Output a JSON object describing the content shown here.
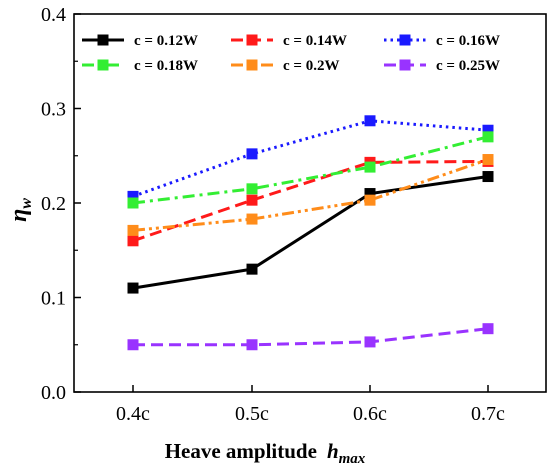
{
  "chart_data": {
    "type": "line",
    "title": "",
    "xlabel": "Heave amplitude",
    "xlabel_symbol": "h",
    "xlabel_subscript": "max",
    "ylabel_symbol": "η",
    "ylabel_subscript": "w",
    "categories": [
      "0.4c",
      "0.5c",
      "0.6c",
      "0.7c"
    ],
    "ylim": [
      0.0,
      0.4
    ],
    "yticks": [
      "0.0",
      "0.1",
      "0.2",
      "0.3",
      "0.4"
    ],
    "grid": false,
    "legend_position": "top",
    "series": [
      {
        "name": "c = 0.12W",
        "values": [
          0.11,
          0.13,
          0.21,
          0.228
        ],
        "color": "#000000",
        "dash": "solid"
      },
      {
        "name": "c = 0.14W",
        "values": [
          0.16,
          0.203,
          0.243,
          0.244
        ],
        "color": "#ff1a1a",
        "dash": "dash"
      },
      {
        "name": "c = 0.16W",
        "values": [
          0.207,
          0.252,
          0.287,
          0.277
        ],
        "color": "#1a1aff",
        "dash": "dot"
      },
      {
        "name": "c = 0.18W",
        "values": [
          0.2,
          0.215,
          0.238,
          0.27
        ],
        "color": "#33ee33",
        "dash": "dashdot"
      },
      {
        "name": "c = 0.2W",
        "values": [
          0.171,
          0.183,
          0.203,
          0.246
        ],
        "color": "#ff8c1a",
        "dash": "dashdotdot"
      },
      {
        "name": "c = 0.25W",
        "values": [
          0.05,
          0.05,
          0.053,
          0.067
        ],
        "color": "#9933ff",
        "dash": "dash"
      }
    ]
  }
}
